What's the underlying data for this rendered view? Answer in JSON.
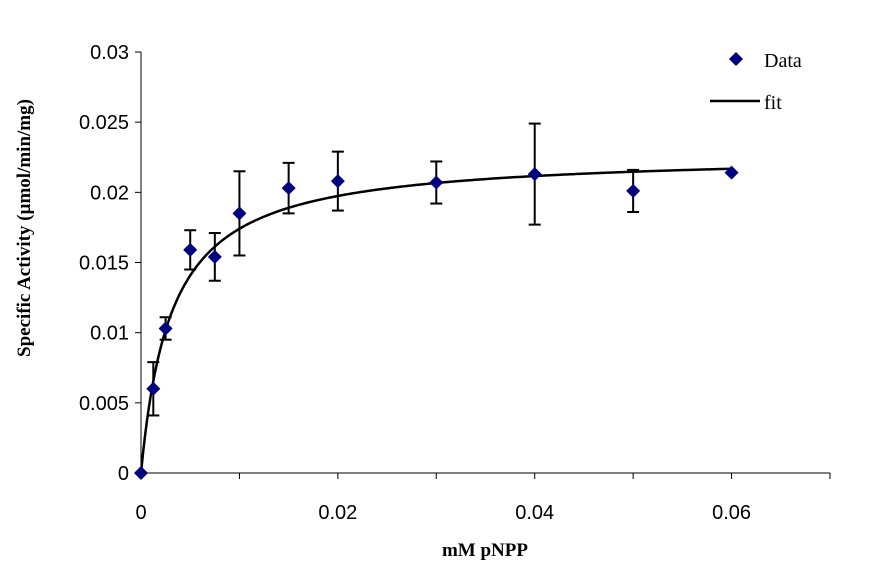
{
  "chart_data": {
    "type": "scatter",
    "xlabel": "mM pNPP",
    "ylabel": "Specific Activity (µmol/min/mg)",
    "xlim": [
      0,
      0.07
    ],
    "ylim": [
      0,
      0.03
    ],
    "x_ticks": [
      {
        "value": 0,
        "label": "0"
      },
      {
        "value": 0.02,
        "label": "0.02"
      },
      {
        "value": 0.04,
        "label": "0.04"
      },
      {
        "value": 0.06,
        "label": "0.06"
      }
    ],
    "y_ticks": [
      {
        "value": 0,
        "label": "0"
      },
      {
        "value": 0.005,
        "label": "0.005"
      },
      {
        "value": 0.01,
        "label": "0.01"
      },
      {
        "value": 0.015,
        "label": "0.015"
      },
      {
        "value": 0.02,
        "label": "0.02"
      },
      {
        "value": 0.025,
        "label": "0.025"
      },
      {
        "value": 0.03,
        "label": "0.03"
      }
    ],
    "grid": false,
    "legend_position": "top-right",
    "series": [
      {
        "name": "Data",
        "kind": "scatter",
        "marker": "diamond",
        "color": "#000080",
        "points": [
          {
            "x": 0,
            "y": 0,
            "err": 0
          },
          {
            "x": 0.00125,
            "y": 0.006,
            "err": 0.0019
          },
          {
            "x": 0.0025,
            "y": 0.0103,
            "err": 0.0008
          },
          {
            "x": 0.005,
            "y": 0.0159,
            "err": 0.0014
          },
          {
            "x": 0.0075,
            "y": 0.0154,
            "err": 0.0017
          },
          {
            "x": 0.01,
            "y": 0.0185,
            "err": 0.003
          },
          {
            "x": 0.015,
            "y": 0.0203,
            "err": 0.0018
          },
          {
            "x": 0.02,
            "y": 0.0208,
            "err": 0.0021
          },
          {
            "x": 0.03,
            "y": 0.0207,
            "err": 0.0015
          },
          {
            "x": 0.04,
            "y": 0.0213,
            "err": 0.0036
          },
          {
            "x": 0.05,
            "y": 0.0201,
            "err": 0.0015
          },
          {
            "x": 0.06,
            "y": 0.0214,
            "err": 0
          }
        ]
      },
      {
        "name": "fit",
        "kind": "line",
        "color": "#000000",
        "model": "michaelis-menten",
        "vmax": 0.0228,
        "km": 0.0031,
        "x_range": [
          0,
          0.06
        ]
      }
    ]
  }
}
